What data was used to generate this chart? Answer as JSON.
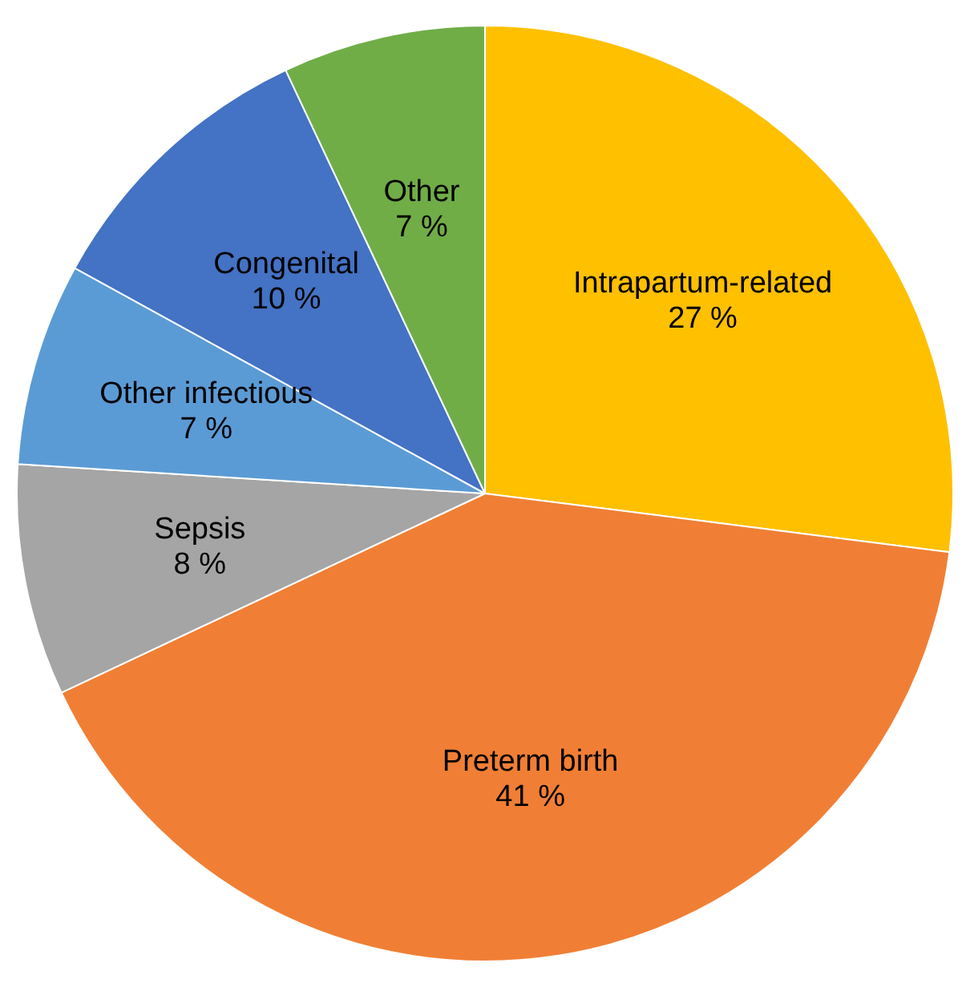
{
  "chart_data": {
    "type": "pie",
    "categories": [
      "Intrapartum-related",
      "Preterm birth",
      "Sepsis",
      "Other infectious",
      "Congenital",
      "Other"
    ],
    "values": [
      27,
      41,
      8,
      7,
      10,
      7
    ],
    "value_labels": [
      "27 %",
      "41 %",
      "8 %",
      "7 %",
      "10 %",
      "7 %"
    ],
    "colors": [
      "#ffc000",
      "#f07f35",
      "#a5a5a5",
      "#5b9bd5",
      "#4472c4",
      "#70ad47"
    ],
    "legend": false
  }
}
